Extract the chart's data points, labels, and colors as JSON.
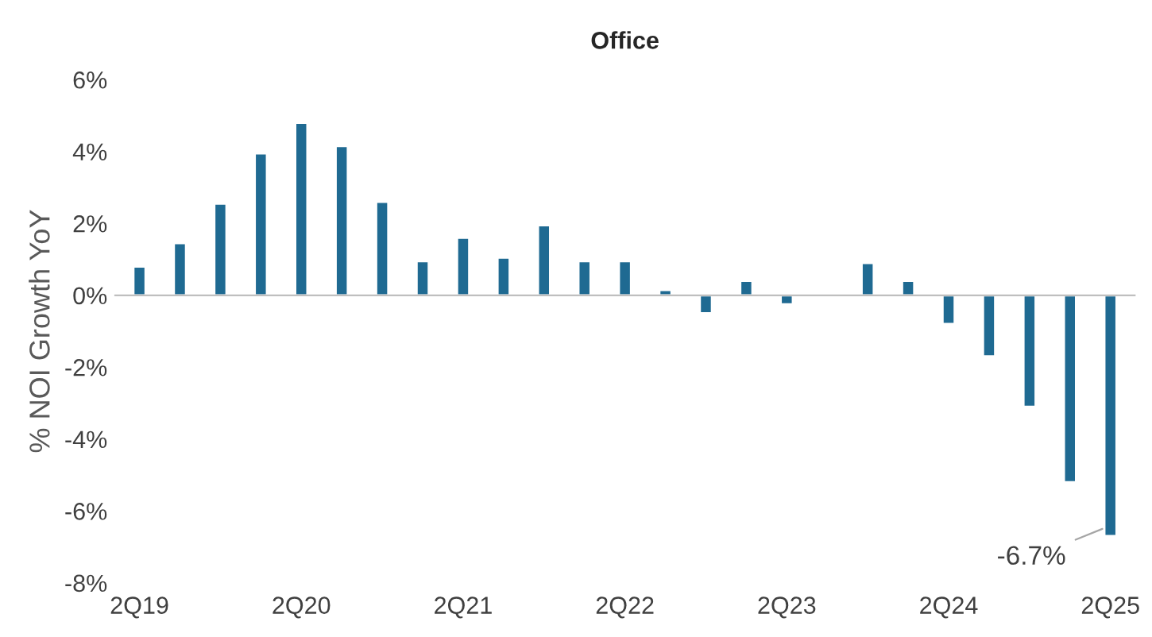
{
  "chart_data": {
    "type": "bar",
    "title": "Office",
    "ylabel": "% NOI Growth YoY",
    "categories": [
      "2Q19",
      null,
      null,
      null,
      "2Q20",
      null,
      null,
      null,
      "2Q21",
      null,
      null,
      null,
      "2Q22",
      null,
      null,
      null,
      "2Q23",
      null,
      null,
      null,
      "2Q24",
      null,
      null,
      null,
      "2Q25"
    ],
    "values": [
      0.8,
      1.45,
      2.55,
      3.95,
      4.8,
      4.15,
      2.6,
      0.95,
      1.6,
      1.05,
      1.95,
      0.95,
      0.95,
      0.15,
      -0.5,
      0.4,
      -0.25,
      null,
      0.9,
      0.4,
      -0.8,
      -1.7,
      -3.1,
      -5.2,
      -6.7
    ],
    "color": "#1f6a92",
    "ylim": [
      -8,
      6
    ],
    "yticks": [
      {
        "value": -8,
        "label": "-8%"
      },
      {
        "value": -6,
        "label": "-6%"
      },
      {
        "value": -4,
        "label": "-4%"
      },
      {
        "value": -2,
        "label": "-2%"
      },
      {
        "value": 0,
        "label": "0%"
      },
      {
        "value": 2,
        "label": "2%"
      },
      {
        "value": 4,
        "label": "4%"
      },
      {
        "value": 6,
        "label": "6%"
      }
    ],
    "annotations": [
      {
        "text": "-6.7%",
        "x": "2Q25",
        "y": -6.7
      }
    ]
  }
}
